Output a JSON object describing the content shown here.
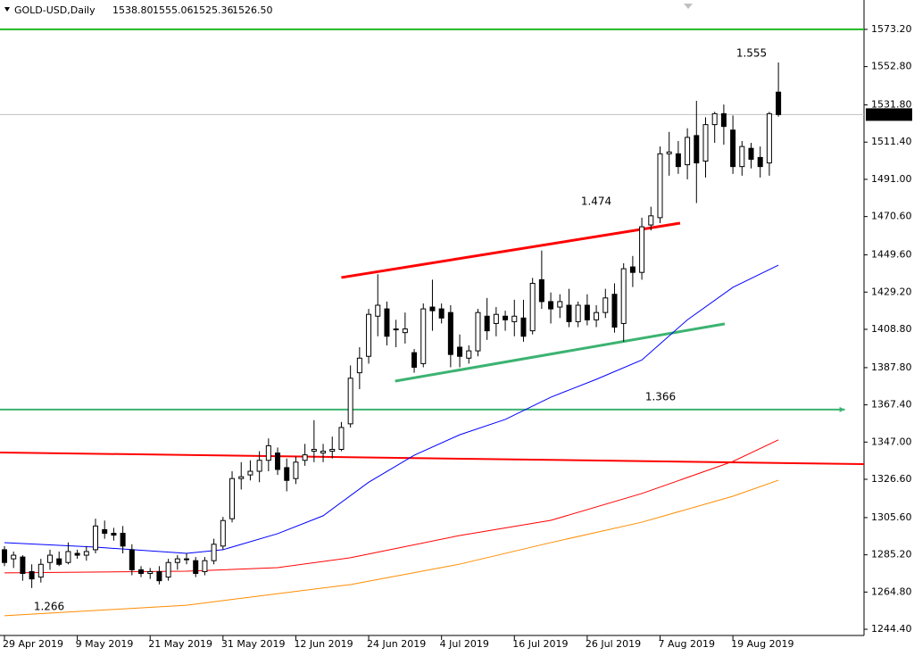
{
  "chart_data": {
    "type": "candlestick",
    "title": "GOLD-USD,Daily",
    "header_labels": [
      "1538.80",
      "1555.06",
      "1525.36",
      "1526.50"
    ],
    "categories": [
      "29 Apr 2019",
      null,
      null,
      null,
      null,
      null,
      null,
      null,
      "9 May 2019",
      null,
      null,
      null,
      null,
      null,
      null,
      null,
      "21 May 2019",
      null,
      null,
      null,
      null,
      null,
      null,
      null,
      "31 May 2019",
      null,
      null,
      null,
      null,
      null,
      null,
      null,
      "12 Jun 2019",
      null,
      null,
      null,
      null,
      null,
      null,
      null,
      "24 Jun 2019",
      null,
      null,
      null,
      null,
      null,
      null,
      null,
      "4 Jul 2019",
      null,
      null,
      null,
      null,
      null,
      null,
      null,
      "16 Jul 2019",
      null,
      null,
      null,
      null,
      null,
      null,
      null,
      "26 Jul 2019",
      null,
      null,
      null,
      null,
      null,
      null,
      null,
      "7 Aug 2019",
      null,
      null,
      null,
      null,
      null,
      null,
      null,
      "19 Aug 2019",
      null,
      null,
      null,
      null,
      null
    ],
    "open": [
      1288,
      1283,
      1284,
      1276,
      1273,
      1281,
      1283,
      1281,
      1286,
      1285,
      1288,
      1299,
      1297,
      1297,
      1288,
      1277,
      1275,
      1276,
      1273,
      1281,
      1283,
      1282,
      1276,
      1282,
      1290,
      1305,
      1327,
      1329,
      1331,
      1337,
      1341,
      1333,
      1327,
      1337,
      1342,
      1341,
      1342,
      1343,
      1357,
      1385,
      1394,
      1416,
      1420,
      1409,
      1407,
      1396,
      1390,
      1421,
      1420,
      1418,
      1399,
      1393,
      1397,
      1416,
      1412,
      1416,
      1413,
      1415,
      1408,
      1436,
      1424,
      1421,
      1422,
      1413,
      1422,
      1414,
      1418,
      1428,
      1412,
      1443,
      1440,
      1466,
      1470,
      1505,
      1505,
      1499,
      1515,
      1501,
      1521,
      1527,
      1518,
      1498,
      1508,
      1503,
      1500,
      1538.8
    ],
    "high": [
      1290,
      1287,
      1285,
      1280,
      1283,
      1288,
      1287,
      1292,
      1288,
      1290,
      1305,
      1304,
      1300,
      1301,
      1291,
      1279,
      1278,
      1279,
      1283,
      1285,
      1286,
      1284,
      1284,
      1294,
      1306,
      1331,
      1336,
      1337,
      1342,
      1349,
      1344,
      1338,
      1339,
      1346,
      1359,
      1346,
      1350,
      1358,
      1389,
      1399,
      1420,
      1439,
      1424,
      1414,
      1418,
      1398,
      1423,
      1436,
      1423,
      1422,
      1406,
      1400,
      1420,
      1426,
      1421,
      1419,
      1425,
      1425,
      1437,
      1452,
      1429,
      1428,
      1431,
      1424,
      1428,
      1422,
      1431,
      1434,
      1445,
      1449,
      1470,
      1476,
      1509,
      1517,
      1512,
      1519,
      1534,
      1525,
      1528,
      1532,
      1526,
      1512,
      1511,
      1509,
      1528,
      1555.06
    ],
    "low": [
      1279,
      1278,
      1271,
      1267,
      1270,
      1277,
      1279,
      1280,
      1283,
      1282,
      1286,
      1294,
      1293,
      1286,
      1274,
      1273,
      1272,
      1269,
      1271,
      1277,
      1280,
      1273,
      1274,
      1280,
      1288,
      1303,
      1321,
      1326,
      1325,
      1331,
      1329,
      1320,
      1324,
      1334,
      1336,
      1336,
      1338,
      1342,
      1355,
      1376,
      1390,
      1405,
      1400,
      1399,
      1401,
      1385,
      1388,
      1408,
      1412,
      1388,
      1388,
      1390,
      1394,
      1403,
      1405,
      1408,
      1405,
      1402,
      1406,
      1420,
      1412,
      1415,
      1410,
      1410,
      1411,
      1410,
      1415,
      1407,
      1402,
      1432,
      1436,
      1463,
      1467,
      1493,
      1494,
      1491,
      1478,
      1492,
      1511,
      1510,
      1494,
      1493,
      1497,
      1492,
      1493,
      1525.36
    ],
    "close": [
      1281,
      1285,
      1275,
      1272,
      1280,
      1285,
      1280,
      1287,
      1285,
      1287,
      1301,
      1297,
      1296,
      1290,
      1277,
      1275,
      1276,
      1271,
      1281,
      1283,
      1283,
      1275,
      1282,
      1291,
      1304,
      1327,
      1328,
      1331,
      1337,
      1345,
      1332,
      1326,
      1336,
      1340,
      1343,
      1342,
      1343,
      1355,
      1382,
      1393,
      1417,
      1422,
      1405,
      1409,
      1409,
      1388,
      1420,
      1419,
      1415,
      1395,
      1394,
      1397,
      1418,
      1408,
      1417,
      1414,
      1416,
      1405,
      1434,
      1424,
      1420,
      1424,
      1413,
      1422,
      1414,
      1418,
      1426,
      1410,
      1442,
      1440,
      1465,
      1471,
      1505,
      1506,
      1498,
      1514,
      1500,
      1521,
      1527,
      1520,
      1498,
      1509,
      1502,
      1498,
      1527,
      1526.5
    ],
    "xlim": [
      -0.49,
      94.4
    ],
    "ylim": [
      1241,
      1589.3
    ],
    "yticks": [
      {
        "value": 1244.4,
        "label": "1244.40"
      },
      {
        "value": 1264.8,
        "label": "1264.80"
      },
      {
        "value": 1285.2,
        "label": "1285.20"
      },
      {
        "value": 1305.6,
        "label": "1305.60"
      },
      {
        "value": 1326.6,
        "label": "1326.60"
      },
      {
        "value": 1347,
        "label": "1347.00"
      },
      {
        "value": 1367.4,
        "label": "1367.40"
      },
      {
        "value": 1387.8,
        "label": "1387.80"
      },
      {
        "value": 1408.8,
        "label": "1408.80"
      },
      {
        "value": 1429.2,
        "label": "1429.20"
      },
      {
        "value": 1449.6,
        "label": "1449.60"
      },
      {
        "value": 1470.6,
        "label": "1470.60"
      },
      {
        "value": 1491,
        "label": "1491.00"
      },
      {
        "value": 1511.4,
        "label": "1511.40"
      },
      {
        "value": 1531.8,
        "label": "1531.80"
      },
      {
        "value": 1552.8,
        "label": "1552.80"
      },
      {
        "value": 1573.2,
        "label": "1573.20"
      }
    ],
    "last_price": {
      "value": 1526.5,
      "label": "1526.50"
    },
    "series": [
      {
        "color": "#0000ff",
        "x": [
          0,
          10,
          20,
          24,
          30,
          35,
          40,
          45,
          50,
          55,
          60,
          65,
          70,
          75,
          80,
          85
        ],
        "values": [
          1291.9,
          1289.4,
          1286,
          1288,
          1296.8,
          1306.6,
          1325,
          1339.8,
          1351,
          1359.4,
          1371.6,
          1381.4,
          1392,
          1414,
          1431.8,
          1444
        ]
      },
      {
        "color": "#ff0000",
        "x": [
          0,
          20,
          30,
          38,
          50,
          60,
          70,
          80,
          85
        ],
        "values": [
          1275.3,
          1276.2,
          1278.2,
          1283.6,
          1295.8,
          1304.1,
          1318.8,
          1336.4,
          1348.2
        ]
      },
      {
        "color": "#ff8c00",
        "x": [
          0,
          20,
          38,
          50,
          60,
          70,
          80,
          85
        ],
        "values": [
          1251.8,
          1257.6,
          1268.9,
          1280.1,
          1291.9,
          1303.1,
          1317.3,
          1326.1
        ]
      }
    ],
    "lines": [
      {
        "color": "#22b822",
        "x": [
          -0.49,
          94.4
        ],
        "values": [
          1573.2,
          1573.2
        ]
      },
      {
        "color": "#3cb371",
        "x": [
          -0.49,
          92.3
        ],
        "values": [
          1364.8,
          1364.8
        ]
      },
      {
        "color": "#ff0000",
        "x": [
          -0.49,
          94.4
        ],
        "values": [
          1341.3,
          1334.9
        ]
      },
      {
        "color": "#ff0000",
        "x": [
          37,
          74.2
        ],
        "values": [
          1437.2,
          1467
        ]
      },
      {
        "color": "#3cb371",
        "x": [
          42.9,
          79.1
        ],
        "values": [
          1380.4,
          1411.8
        ]
      }
    ],
    "annotations": [
      {
        "text": "1.555",
        "color": "#0000ff"
      },
      {
        "text": "1.474",
        "color": "#0000ff"
      },
      {
        "text": "1.366",
        "color": "#3cb371"
      },
      {
        "text": "1.266",
        "color": "#0000ff"
      }
    ]
  }
}
